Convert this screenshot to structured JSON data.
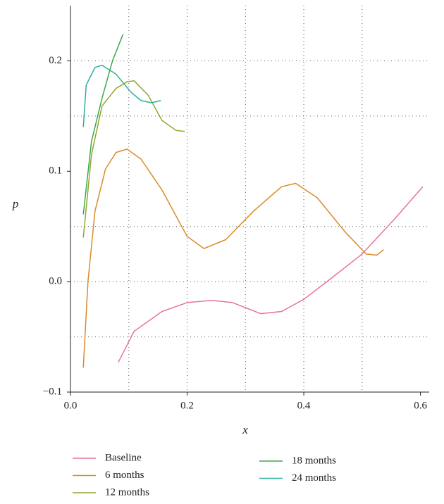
{
  "chart_data": {
    "type": "line",
    "x_label": "x",
    "y_label": "p",
    "xlim": [
      0,
      0.615
    ],
    "ylim": [
      -0.1,
      0.25
    ],
    "xticks": [
      {
        "value": 0,
        "label": "0.0"
      },
      0.2,
      0.4,
      0.6
    ],
    "yticks": [
      {
        "value": -0.1,
        "label": "−0.1"
      },
      {
        "value": 0,
        "label": "0.0"
      },
      0.1,
      0.2
    ],
    "xgrid": [
      0.1,
      0.2,
      0.3,
      0.4,
      0.5
    ],
    "ygrid": [
      -0.05,
      0,
      0.05,
      0.15,
      0.2
    ],
    "grid": true,
    "series": [
      {
        "name": "Baseline",
        "color": "#e8739a",
        "x": [
          0.082,
          0.109,
          0.157,
          0.2,
          0.242,
          0.278,
          0.326,
          0.362,
          0.4,
          0.447,
          0.5,
          0.556,
          0.604
        ],
        "values": [
          -0.073,
          -0.045,
          -0.027,
          -0.019,
          -0.017,
          -0.019,
          -0.029,
          -0.027,
          -0.016,
          0.003,
          0.025,
          0.057,
          0.086
        ]
      },
      {
        "name": "6 months",
        "color": "#d98c2b",
        "x": [
          0.022,
          0.03,
          0.042,
          0.06,
          0.078,
          0.097,
          0.121,
          0.157,
          0.2,
          0.229,
          0.266,
          0.314,
          0.362,
          0.386,
          0.423,
          0.471,
          0.507,
          0.525,
          0.537
        ],
        "values": [
          -0.078,
          0,
          0.064,
          0.102,
          0.117,
          0.12,
          0.111,
          0.083,
          0.041,
          0.03,
          0.038,
          0.064,
          0.086,
          0.089,
          0.076,
          0.045,
          0.025,
          0.024,
          0.029
        ]
      },
      {
        "name": "12 months",
        "color": "#94a62b",
        "x": [
          0.022,
          0.036,
          0.054,
          0.078,
          0.097,
          0.109,
          0.133,
          0.157,
          0.181,
          0.196
        ],
        "values": [
          0.04,
          0.115,
          0.159,
          0.175,
          0.181,
          0.182,
          0.169,
          0.146,
          0.137,
          0.136
        ]
      },
      {
        "name": "18 months",
        "color": "#3aaa4a",
        "x": [
          0.022,
          0.036,
          0.054,
          0.072,
          0.09
        ],
        "values": [
          0.061,
          0.127,
          0.166,
          0.2,
          0.224
        ]
      },
      {
        "name": "24 months",
        "color": "#2ab09e",
        "x": [
          0.022,
          0.027,
          0.042,
          0.054,
          0.078,
          0.103,
          0.121,
          0.139,
          0.155
        ],
        "values": [
          0.14,
          0.178,
          0.194,
          0.196,
          0.188,
          0.172,
          0.164,
          0.162,
          0.164
        ]
      }
    ]
  }
}
